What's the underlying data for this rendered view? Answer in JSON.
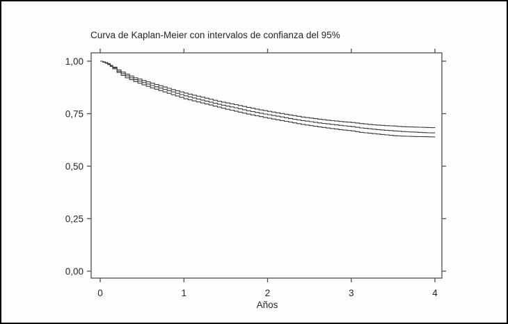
{
  "figure": {
    "background_color": "#fdfdfd",
    "border_color": "#000000"
  },
  "chart_data": {
    "type": "line",
    "subtype": "kaplan-meier-step",
    "title": "Curva de Kaplan-Meier con intervalos de confianza del 95%",
    "xlabel": "Años",
    "ylabel": "",
    "xlim": [
      0,
      4
    ],
    "ylim": [
      0,
      1
    ],
    "xticks": [
      0,
      1,
      2,
      3,
      4
    ],
    "xtick_labels": [
      "0",
      "1",
      "2",
      "3",
      "4"
    ],
    "yticks": [
      0,
      0.25,
      0.5,
      0.75,
      1
    ],
    "ytick_labels": [
      "0,00",
      "0,25",
      "0,50",
      "0,75",
      "1,00"
    ],
    "grid": false,
    "legend": "none",
    "line_color": "#3a3a3a",
    "axis_color": "#4d4d4d",
    "x": [
      0,
      0.03,
      0.06,
      0.09,
      0.12,
      0.15,
      0.2,
      0.25,
      0.3,
      0.4,
      0.5,
      0.6,
      0.7,
      0.8,
      0.9,
      1.0,
      1.1,
      1.25,
      1.4,
      1.5,
      1.6,
      1.75,
      1.9,
      2.0,
      2.1,
      2.25,
      2.4,
      2.5,
      2.6,
      2.75,
      2.9,
      3.0,
      3.1,
      3.25,
      3.4,
      3.5,
      3.6,
      3.75,
      3.9,
      4.0
    ],
    "series": [
      {
        "name": "upper_ci_95",
        "values": [
          1.0,
          0.997,
          0.993,
          0.988,
          0.98,
          0.972,
          0.958,
          0.948,
          0.938,
          0.921,
          0.908,
          0.895,
          0.883,
          0.871,
          0.859,
          0.848,
          0.838,
          0.824,
          0.809,
          0.801,
          0.793,
          0.78,
          0.768,
          0.761,
          0.754,
          0.744,
          0.734,
          0.729,
          0.724,
          0.717,
          0.711,
          0.708,
          0.703,
          0.697,
          0.693,
          0.691,
          0.688,
          0.686,
          0.684,
          0.683
        ]
      },
      {
        "name": "survival_estimate",
        "values": [
          1.0,
          0.996,
          0.992,
          0.986,
          0.978,
          0.968,
          0.952,
          0.94,
          0.93,
          0.912,
          0.898,
          0.884,
          0.872,
          0.86,
          0.847,
          0.835,
          0.825,
          0.81,
          0.795,
          0.786,
          0.778,
          0.764,
          0.752,
          0.745,
          0.738,
          0.727,
          0.717,
          0.712,
          0.706,
          0.699,
          0.692,
          0.688,
          0.682,
          0.676,
          0.671,
          0.668,
          0.665,
          0.662,
          0.659,
          0.658
        ]
      },
      {
        "name": "lower_ci_95",
        "values": [
          1.0,
          0.995,
          0.99,
          0.984,
          0.975,
          0.964,
          0.946,
          0.932,
          0.921,
          0.903,
          0.887,
          0.873,
          0.86,
          0.847,
          0.834,
          0.821,
          0.811,
          0.796,
          0.781,
          0.771,
          0.762,
          0.748,
          0.736,
          0.728,
          0.721,
          0.71,
          0.699,
          0.693,
          0.687,
          0.679,
          0.672,
          0.668,
          0.661,
          0.655,
          0.649,
          0.645,
          0.643,
          0.641,
          0.64,
          0.639
        ]
      }
    ]
  }
}
